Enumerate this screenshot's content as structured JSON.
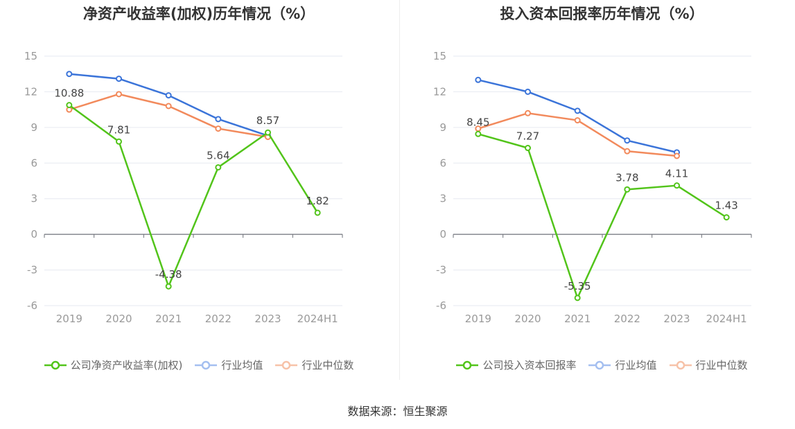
{
  "source_text": "数据来源：恒生聚源",
  "chart_data": [
    {
      "type": "line",
      "title": "净资产收益率(加权)历年情况（%）",
      "categories": [
        "2019",
        "2020",
        "2021",
        "2022",
        "2023",
        "2024H1"
      ],
      "y_ticks": [
        "15",
        "12",
        "9",
        "6",
        "3",
        "0",
        "-3",
        "-6"
      ],
      "ylim": [
        -6,
        15
      ],
      "series": [
        {
          "name": "公司净资产收益率(加权)",
          "color": "#52c41a",
          "values": [
            10.88,
            7.81,
            -4.38,
            5.64,
            8.57,
            1.82
          ],
          "labels": [
            "10.88",
            "7.81",
            "-4.38",
            "5.64",
            "8.57",
            "1.82"
          ]
        },
        {
          "name": "行业均值",
          "color": "#3b74d9",
          "legend_color": "#a4bff0",
          "values": [
            13.5,
            13.1,
            11.7,
            9.7,
            8.3,
            null
          ]
        },
        {
          "name": "行业中位数",
          "color": "#f28a5c",
          "legend_color": "#f7c2a8",
          "values": [
            10.5,
            11.8,
            10.8,
            8.9,
            8.2,
            null
          ]
        }
      ],
      "legend_position": "bottom"
    },
    {
      "type": "line",
      "title": "投入资本回报率历年情况（%）",
      "categories": [
        "2019",
        "2020",
        "2021",
        "2022",
        "2023",
        "2024H1"
      ],
      "y_ticks": [
        "15",
        "12",
        "9",
        "6",
        "3",
        "0",
        "-3",
        "-6"
      ],
      "ylim": [
        -6,
        15
      ],
      "series": [
        {
          "name": "公司投入资本回报率",
          "color": "#52c41a",
          "values": [
            8.45,
            7.27,
            -5.35,
            3.78,
            4.11,
            1.43
          ],
          "labels": [
            "8.45",
            "7.27",
            "-5.35",
            "3.78",
            "4.11",
            "1.43"
          ]
        },
        {
          "name": "行业均值",
          "color": "#3b74d9",
          "legend_color": "#a4bff0",
          "values": [
            13.0,
            12.0,
            10.4,
            7.9,
            6.9,
            null
          ]
        },
        {
          "name": "行业中位数",
          "color": "#f28a5c",
          "legend_color": "#f7c2a8",
          "values": [
            8.9,
            10.2,
            9.6,
            7.0,
            6.6,
            null
          ]
        }
      ],
      "legend_position": "bottom"
    }
  ]
}
